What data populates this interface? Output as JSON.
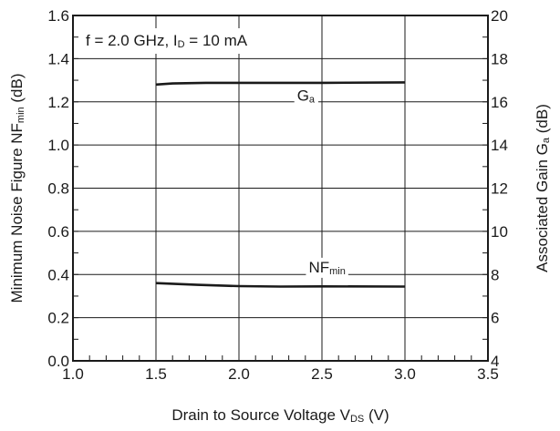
{
  "chart_data": {
    "type": "line",
    "x_axis": {
      "label_main": "Drain to Source Voltage  V",
      "label_sub": "DS",
      "label_unit": " (V)",
      "range": [
        1.0,
        3.5
      ],
      "ticks": [
        1.0,
        1.5,
        2.0,
        2.5,
        3.0,
        3.5
      ],
      "tick_labels": [
        "1.0",
        "1.5",
        "2.0",
        "2.5",
        "3.0",
        "3.5"
      ],
      "minor_step": 0.1
    },
    "y_left": {
      "label_main": "Minimum Noise Figure  NF",
      "label_sub": "min",
      "label_unit": " (dB)",
      "range": [
        0.0,
        1.6
      ],
      "ticks": [
        0.0,
        0.2,
        0.4,
        0.6,
        0.8,
        1.0,
        1.2,
        1.4,
        1.6
      ],
      "tick_labels": [
        "0.0",
        "0.2",
        "0.4",
        "0.6",
        "0.8",
        "1.0",
        "1.2",
        "1.4",
        "1.6"
      ],
      "minor_step": 0.1
    },
    "y_right": {
      "label_main": "Associated Gain  G",
      "label_sub": "a",
      "label_unit": " (dB)",
      "range": [
        4,
        20
      ],
      "ticks": [
        4,
        6,
        8,
        10,
        12,
        14,
        16,
        18,
        20
      ],
      "tick_labels": [
        "4",
        "6",
        "8",
        "10",
        "12",
        "14",
        "16",
        "18",
        "20"
      ],
      "minor_step": 1
    },
    "grid": true,
    "annotation": {
      "main1": "f = 2.0 GHz, I",
      "sub": "D",
      "main2": " = 10 mA"
    },
    "series": [
      {
        "axis": "right",
        "label_main": "G",
        "label_sub": "a",
        "label_at": [
          2.35,
          16.05
        ],
        "x": [
          1.5,
          1.6,
          1.8,
          2.0,
          2.5,
          3.0
        ],
        "y": [
          16.8,
          16.85,
          16.88,
          16.88,
          16.88,
          16.9
        ]
      },
      {
        "axis": "left",
        "label_main": "NF",
        "label_sub": "min",
        "label_at": [
          2.42,
          0.41
        ],
        "x": [
          1.5,
          1.75,
          2.0,
          2.25,
          2.5,
          3.0
        ],
        "y": [
          0.36,
          0.352,
          0.346,
          0.344,
          0.345,
          0.344
        ]
      }
    ]
  }
}
